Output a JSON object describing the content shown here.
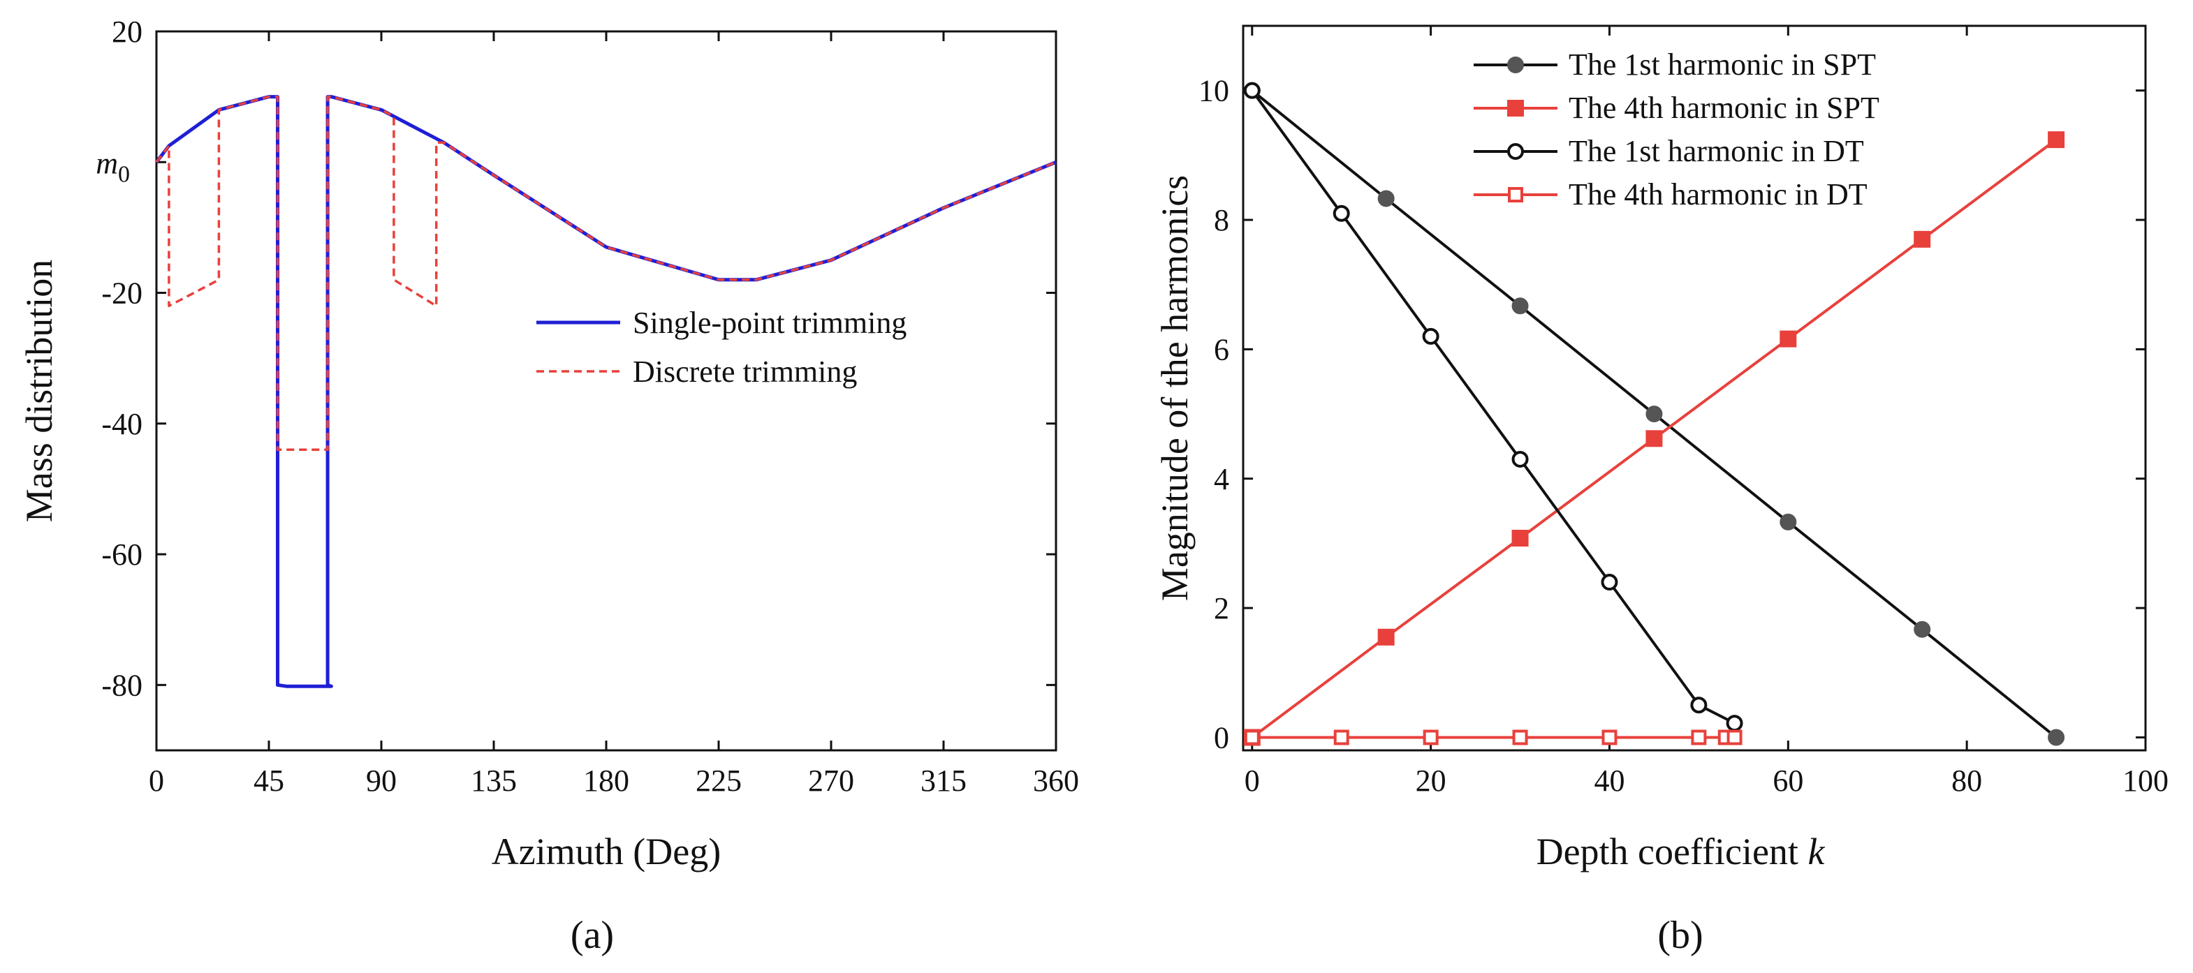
{
  "chart_data": [
    {
      "type": "line",
      "panel_label": "(a)",
      "xlabel": "Azimuth (Deg)",
      "ylabel": "Mass distribution",
      "xlim": [
        0,
        360
      ],
      "ylim": [
        -90,
        20
      ],
      "xticks": [
        0,
        45,
        90,
        135,
        180,
        225,
        270,
        315,
        360
      ],
      "yticks": [
        20,
        -20,
        -40,
        -60,
        -80
      ],
      "y_annotation": {
        "label": "m",
        "sub": "0",
        "value": 0
      },
      "legend_position": "center-right",
      "series": [
        {
          "name": "Single-point trimming",
          "color": "#1f1fd6",
          "style": "solid",
          "points": [
            [
              0,
              0
            ],
            [
              5,
              2.5
            ],
            [
              25,
              8
            ],
            [
              45,
              10
            ],
            [
              48.5,
              10
            ],
            [
              48.5,
              -80
            ],
            [
              52,
              -80.2
            ],
            [
              70,
              -80.2
            ],
            [
              68.5,
              -80
            ],
            [
              68.5,
              10
            ],
            [
              70,
              10
            ],
            [
              90,
              8
            ],
            [
              115,
              3
            ],
            [
              135,
              -2
            ],
            [
              180,
              -13
            ],
            [
              225,
              -18
            ],
            [
              240,
              -18
            ],
            [
              270,
              -15
            ],
            [
              315,
              -7
            ],
            [
              360,
              0
            ]
          ]
        },
        {
          "name": "Discrete trimming",
          "color": "#e8413c",
          "style": "dashed",
          "points": [
            [
              0,
              0
            ],
            [
              5,
              2.5
            ],
            [
              5,
              -22
            ],
            [
              25,
              -18
            ],
            [
              25,
              8
            ],
            [
              45,
              10
            ],
            [
              48.5,
              10
            ],
            [
              48.5,
              -44
            ],
            [
              68.5,
              -44
            ],
            [
              68.5,
              10
            ],
            [
              70,
              10
            ],
            [
              90,
              8
            ],
            [
              95,
              7
            ],
            [
              95,
              -18
            ],
            [
              112,
              -22
            ],
            [
              112,
              3
            ],
            [
              115,
              3
            ],
            [
              135,
              -2
            ],
            [
              180,
              -13
            ],
            [
              225,
              -18
            ],
            [
              240,
              -18
            ],
            [
              270,
              -15
            ],
            [
              315,
              -7
            ],
            [
              360,
              0
            ]
          ]
        }
      ]
    },
    {
      "type": "line",
      "panel_label": "(b)",
      "xlabel": "Depth coefficient",
      "xlabel_var": "k",
      "ylabel": "Magnitude of the harmonics",
      "xlim": [
        -1,
        100
      ],
      "ylim": [
        -0.2,
        11
      ],
      "xticks": [
        0,
        20,
        40,
        60,
        80,
        100
      ],
      "yticks": [
        0,
        2,
        4,
        6,
        8,
        10
      ],
      "legend_position": "top-left",
      "series": [
        {
          "name": "The 1st harmonic in SPT",
          "color": "#111111",
          "marker": "circle-filled",
          "marker_color": "#555555",
          "x": [
            0,
            15,
            30,
            45,
            60,
            75,
            90
          ],
          "y": [
            10,
            8.33,
            6.67,
            5.0,
            3.33,
            1.67,
            0
          ]
        },
        {
          "name": "The 4th harmonic in SPT",
          "color": "#e8413c",
          "marker": "square-filled",
          "marker_color": "#e8413c",
          "x": [
            0,
            15,
            30,
            45,
            60,
            75,
            90
          ],
          "y": [
            0,
            1.55,
            3.08,
            4.62,
            6.16,
            7.7,
            9.24
          ]
        },
        {
          "name": "The 1st harmonic in DT",
          "color": "#111111",
          "marker": "circle-open",
          "marker_color": "#111111",
          "x": [
            0,
            10,
            20,
            30,
            40,
            50,
            54
          ],
          "y": [
            10,
            8.1,
            6.2,
            4.3,
            2.4,
            0.5,
            0.22
          ]
        },
        {
          "name": "The 4th harmonic in DT",
          "color": "#e8413c",
          "marker": "square-open",
          "marker_color": "#e8413c",
          "x": [
            0,
            10,
            20,
            30,
            40,
            50,
            53,
            54
          ],
          "y": [
            0,
            0,
            0,
            0,
            0,
            0,
            0,
            0
          ]
        }
      ]
    }
  ]
}
